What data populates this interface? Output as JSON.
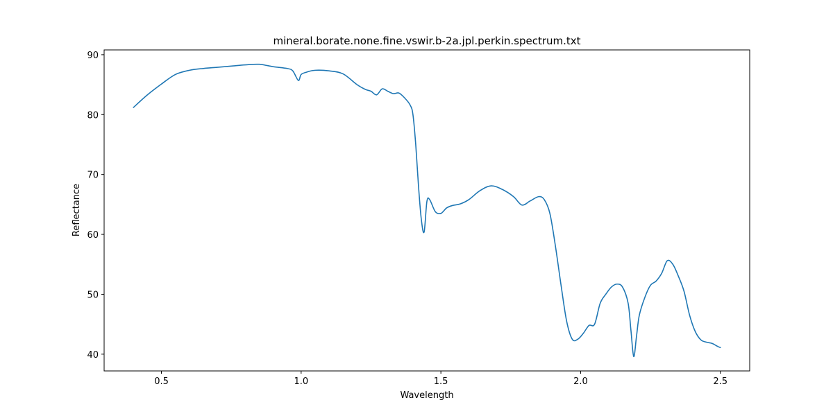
{
  "chart_data": {
    "type": "line",
    "title": "mineral.borate.none.fine.vswir.b-2a.jpl.perkin.spectrum.txt",
    "xlabel": "Wavelength",
    "ylabel": "Reflectance",
    "xlim": [
      0.295,
      2.605
    ],
    "ylim": [
      37.2,
      90.8
    ],
    "xticks": [
      0.5,
      1.0,
      1.5,
      2.0,
      2.5
    ],
    "xtick_labels": [
      "0.5",
      "1.0",
      "1.5",
      "2.0",
      "2.5"
    ],
    "yticks": [
      40,
      50,
      60,
      70,
      80,
      90
    ],
    "ytick_labels": [
      "40",
      "50",
      "60",
      "70",
      "80",
      "90"
    ],
    "grid": false,
    "legend": "none",
    "series": [
      {
        "color": "#1f77b4",
        "x": [
          0.4,
          0.45,
          0.5,
          0.55,
          0.6,
          0.65,
          0.7,
          0.75,
          0.8,
          0.85,
          0.9,
          0.95,
          0.97,
          0.99,
          1.0,
          1.02,
          1.05,
          1.1,
          1.15,
          1.2,
          1.23,
          1.25,
          1.27,
          1.29,
          1.31,
          1.33,
          1.35,
          1.37,
          1.39,
          1.4,
          1.41,
          1.42,
          1.43,
          1.44,
          1.45,
          1.46,
          1.48,
          1.5,
          1.52,
          1.54,
          1.57,
          1.6,
          1.64,
          1.68,
          1.72,
          1.76,
          1.79,
          1.82,
          1.85,
          1.87,
          1.89,
          1.91,
          1.93,
          1.95,
          1.97,
          1.99,
          2.01,
          2.03,
          2.05,
          2.07,
          2.09,
          2.11,
          2.13,
          2.15,
          2.17,
          2.18,
          2.19,
          2.2,
          2.21,
          2.23,
          2.25,
          2.27,
          2.29,
          2.31,
          2.33,
          2.35,
          2.37,
          2.39,
          2.41,
          2.43,
          2.45,
          2.47,
          2.49,
          2.5
        ],
        "y": [
          81.2,
          83.3,
          85.1,
          86.7,
          87.4,
          87.7,
          87.9,
          88.1,
          88.3,
          88.4,
          88.0,
          87.7,
          87.3,
          85.7,
          86.7,
          87.1,
          87.4,
          87.3,
          86.8,
          85.0,
          84.2,
          83.9,
          83.3,
          84.3,
          83.9,
          83.5,
          83.6,
          82.8,
          81.6,
          80.0,
          75.0,
          68.0,
          62.5,
          60.4,
          65.5,
          65.8,
          63.8,
          63.5,
          64.4,
          64.8,
          65.1,
          65.8,
          67.3,
          68.1,
          67.5,
          66.3,
          64.9,
          65.6,
          66.3,
          65.8,
          63.5,
          58.0,
          51.5,
          45.5,
          42.5,
          42.5,
          43.5,
          44.8,
          45.0,
          48.5,
          50.0,
          51.2,
          51.7,
          51.2,
          48.5,
          44.0,
          39.6,
          43.0,
          46.5,
          49.5,
          51.5,
          52.2,
          53.5,
          55.6,
          55.0,
          53.0,
          50.5,
          46.5,
          43.8,
          42.4,
          42.0,
          41.8,
          41.3,
          41.1
        ]
      }
    ]
  }
}
